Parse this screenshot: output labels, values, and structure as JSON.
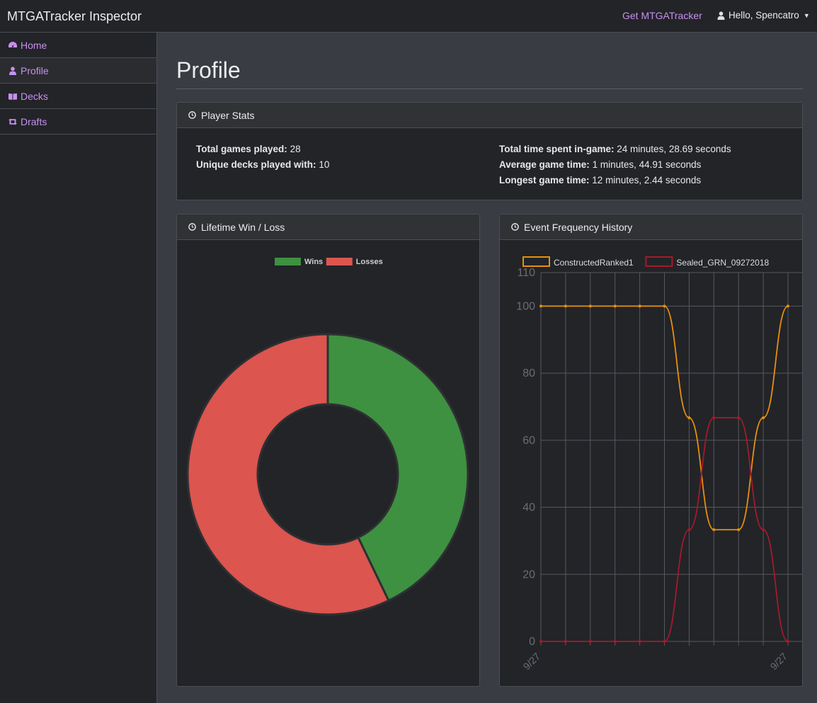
{
  "app": {
    "brand": "MTGATracker Inspector"
  },
  "topnav": {
    "get_link": "Get MTGATracker",
    "user_greeting": "Hello, Spencatro"
  },
  "sidebar": {
    "items": [
      {
        "label": "Home",
        "icon": "dashboard-icon"
      },
      {
        "label": "Profile",
        "icon": "user-icon"
      },
      {
        "label": "Decks",
        "icon": "book-icon"
      },
      {
        "label": "Drafts",
        "icon": "retweet-icon"
      }
    ]
  },
  "page": {
    "title": "Profile"
  },
  "player_stats": {
    "title": "Player Stats",
    "total_games_label": "Total games played:",
    "total_games_value": "28",
    "unique_decks_label": "Unique decks played with:",
    "unique_decks_value": "10",
    "total_time_label": "Total time spent in-game:",
    "total_time_value": "24 minutes, 28.69 seconds",
    "avg_time_label": "Average game time:",
    "avg_time_value": "1 minutes, 44.91 seconds",
    "longest_label": "Longest game time:",
    "longest_value": "12 minutes, 2.44 seconds"
  },
  "colors": {
    "wins": "#3e9140",
    "losses": "#dc554f",
    "constructed": "#e8900c",
    "sealed": "#a51a2a",
    "accent": "#c98ff0"
  },
  "chart_data": [
    {
      "type": "pie",
      "title": "Lifetime Win / Loss",
      "donut": true,
      "legend_position": "top",
      "labels": [
        "Wins",
        "Losses"
      ],
      "values": [
        12,
        16
      ]
    },
    {
      "type": "line",
      "title": "Event Frequency History",
      "legend_position": "top",
      "grid": true,
      "ylim": [
        0,
        110
      ],
      "yticks": [
        0,
        20,
        40,
        60,
        80,
        100,
        110
      ],
      "categories": [
        "9/27",
        "",
        "",
        "",
        "",
        "",
        "",
        "",
        "",
        "",
        "9/27"
      ],
      "series": [
        {
          "name": "ConstructedRanked1",
          "values": [
            100,
            100,
            100,
            100,
            100,
            100,
            66.7,
            33.3,
            33.3,
            66.7,
            100
          ]
        },
        {
          "name": "Sealed_GRN_09272018",
          "values": [
            0,
            0,
            0,
            0,
            0,
            0,
            33.3,
            66.7,
            66.7,
            33.3,
            0
          ]
        }
      ]
    }
  ]
}
